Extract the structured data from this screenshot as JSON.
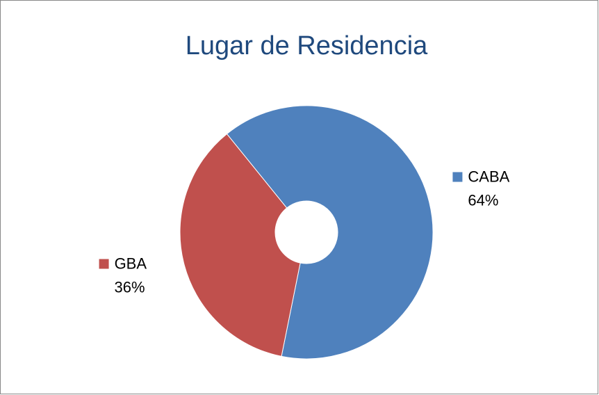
{
  "chart_data": {
    "type": "donut",
    "title": "Lugar de Residencia",
    "categories": [
      "CABA",
      "GBA"
    ],
    "values": [
      64,
      36
    ],
    "value_labels": [
      "64%",
      "36%"
    ],
    "colors": [
      "#4f81bd",
      "#c0504d"
    ]
  }
}
